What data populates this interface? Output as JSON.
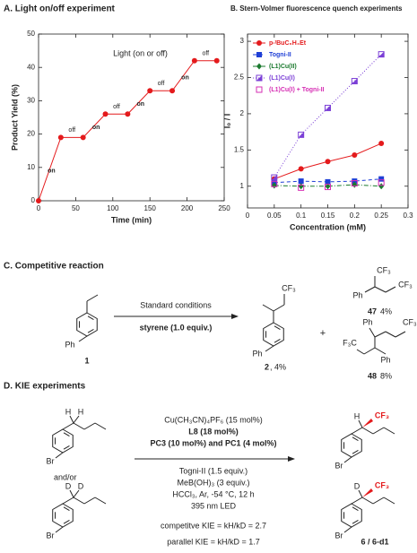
{
  "chart_data": [
    {
      "type": "line",
      "title": "A. Light on/off experiment",
      "xlabel": "Time (min)",
      "ylabel": "Product Yield (%)",
      "x": [
        0,
        30,
        60,
        90,
        120,
        150,
        180,
        210,
        240
      ],
      "values": [
        0,
        19,
        19,
        26,
        26,
        33,
        33,
        42,
        42
      ],
      "color": "#e41a1c",
      "xlim": [
        0,
        250
      ],
      "xticks": [
        0,
        50,
        100,
        150,
        200,
        250
      ],
      "ylim": [
        0,
        50
      ],
      "yticks": [
        0,
        10,
        20,
        30,
        40,
        50
      ],
      "annotations": [
        "Light (on or off)",
        "on",
        "off",
        "on",
        "off",
        "on",
        "off",
        "on",
        "off"
      ]
    },
    {
      "type": "line",
      "title": "B. Stern-Volmer fluorescence quench experiments",
      "xlabel": "Concentration (mM)",
      "ylabel": "I₀ / I",
      "x": [
        0.05,
        0.1,
        0.15,
        0.2,
        0.25
      ],
      "xlim": [
        0,
        0.3
      ],
      "xticks": [
        0,
        0.05,
        0.1,
        0.15,
        0.2,
        0.25,
        0.3
      ],
      "ylim": [
        0.7,
        3.1
      ],
      "yticks": [
        1,
        1.5,
        2,
        2.5,
        3
      ],
      "legend": "upper left",
      "series": [
        {
          "name": "p-ᵗBuC₆H₄Et",
          "color": "#e41a1c",
          "marker": "circle",
          "line": "solid",
          "values": [
            1.1,
            1.24,
            1.34,
            1.43,
            1.59
          ]
        },
        {
          "name": "Togni-II",
          "color": "#1f3fd6",
          "marker": "square",
          "line": "dashed",
          "values": [
            1.05,
            1.07,
            1.06,
            1.07,
            1.1
          ]
        },
        {
          "name": "(L1)Cu(II)",
          "color": "#1b7a2e",
          "marker": "diamond",
          "line": "dashdot",
          "values": [
            1.01,
            1.0,
            1.0,
            1.02,
            1.0
          ]
        },
        {
          "name": "(L1)Cu(I)",
          "color": "#7b3fd6",
          "marker": "halfsquare",
          "line": "dotted",
          "values": [
            1.12,
            1.71,
            2.08,
            2.45,
            2.82
          ]
        },
        {
          "name": "(L1)Cu(I) + Togni-II",
          "color": "#d62fb4",
          "marker": "opensquare",
          "line": "none",
          "values": [
            1.03,
            0.98,
            0.99,
            1.04,
            1.05
          ]
        }
      ]
    }
  ],
  "section_c": {
    "title": "C. Competitive reaction",
    "conditions": "Standard conditions",
    "additive": "styrene (1.0 equiv.)",
    "compound_1": "1",
    "product_2": "2",
    "product_2_yield": ", 4%",
    "plus": "+",
    "product_47": "47",
    "product_47_yield": "4%",
    "product_48": "48",
    "product_48_yield": "8%",
    "atoms": [
      "Ph",
      "Ph",
      "CF₃",
      "Ph",
      "CF₃",
      "CF₃",
      "Ph",
      "CF₃",
      "F₃C",
      "Ph"
    ]
  },
  "section_d": {
    "title": "D. KIE experiments",
    "conditions": [
      "Cu(CH₃CN)₄PF₆ (15 mol%)",
      "L8 (18 mol%)",
      "PC3 (10 mol%) and PC1 (4 mol%)",
      "Togni-II (1.5 equiv.)",
      "MeB(OH)₃ (3 equiv.)",
      "HCCl₃, Ar, -54 °C, 12 h",
      "395 nm LED"
    ],
    "and_or": "and/or",
    "kie_competitive": "competitve KIE = kH/kD = 2.7",
    "kie_parallel": "parallel KIE = kH/kD = 1.7",
    "product": "6 / 6-d1",
    "atoms": [
      "H",
      "H",
      "Br",
      "D",
      "D",
      "Br",
      "H",
      "CF₃",
      "Br",
      "D",
      "CF₃",
      "Br"
    ]
  }
}
